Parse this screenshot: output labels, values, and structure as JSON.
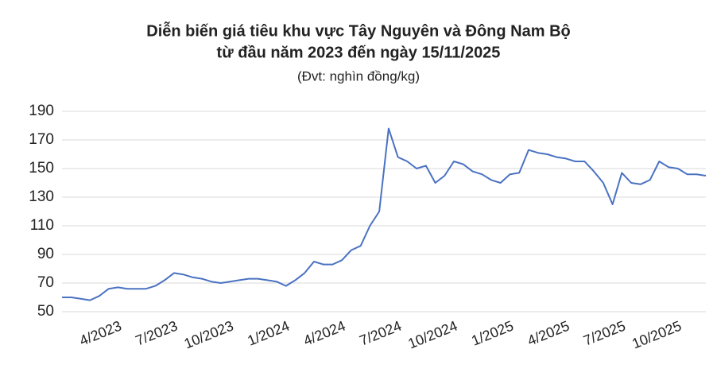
{
  "chart_data": {
    "type": "line",
    "title": "Diễn biến giá tiêu khu vực Tây Nguyên và Đông Nam Bộ",
    "title_line2": "từ đầu năm 2023 đến ngày 15/11/2025",
    "subtitle": "(Đvt: nghìn đồng/kg)",
    "categories": [
      null,
      null,
      null,
      null,
      null,
      null,
      "4/2023",
      null,
      null,
      null,
      null,
      null,
      "7/2023",
      null,
      null,
      null,
      null,
      null,
      "10/2023",
      null,
      null,
      null,
      null,
      null,
      "1/2024",
      null,
      null,
      null,
      null,
      null,
      "4/2024",
      null,
      null,
      null,
      null,
      null,
      "7/2024",
      null,
      null,
      null,
      null,
      null,
      "10/2024",
      null,
      null,
      null,
      null,
      null,
      "1/2025",
      null,
      null,
      null,
      null,
      null,
      "4/2025",
      null,
      null,
      null,
      null,
      null,
      "7/2025",
      null,
      null,
      null,
      null,
      null,
      "10/2025",
      null,
      null,
      null
    ],
    "series": [
      {
        "name": "Giá tiêu",
        "color": "#4a72c2",
        "values": [
          60,
          60,
          59,
          58,
          61,
          66,
          67,
          66,
          66,
          66,
          68,
          72,
          77,
          76,
          74,
          73,
          71,
          70,
          71,
          72,
          73,
          73,
          72,
          71,
          68,
          72,
          77,
          85,
          83,
          83,
          86,
          93,
          96,
          110,
          120,
          178,
          158,
          155,
          150,
          152,
          140,
          145,
          155,
          153,
          148,
          146,
          142,
          140,
          146,
          147,
          163,
          161,
          160,
          158,
          157,
          155,
          155,
          148,
          140,
          125,
          147,
          140,
          139,
          142,
          155,
          151,
          150,
          146,
          146,
          145
        ]
      }
    ],
    "ylim": [
      50,
      190
    ],
    "yticks": [
      50,
      70,
      90,
      110,
      130,
      150,
      170,
      190
    ],
    "grid": true
  }
}
